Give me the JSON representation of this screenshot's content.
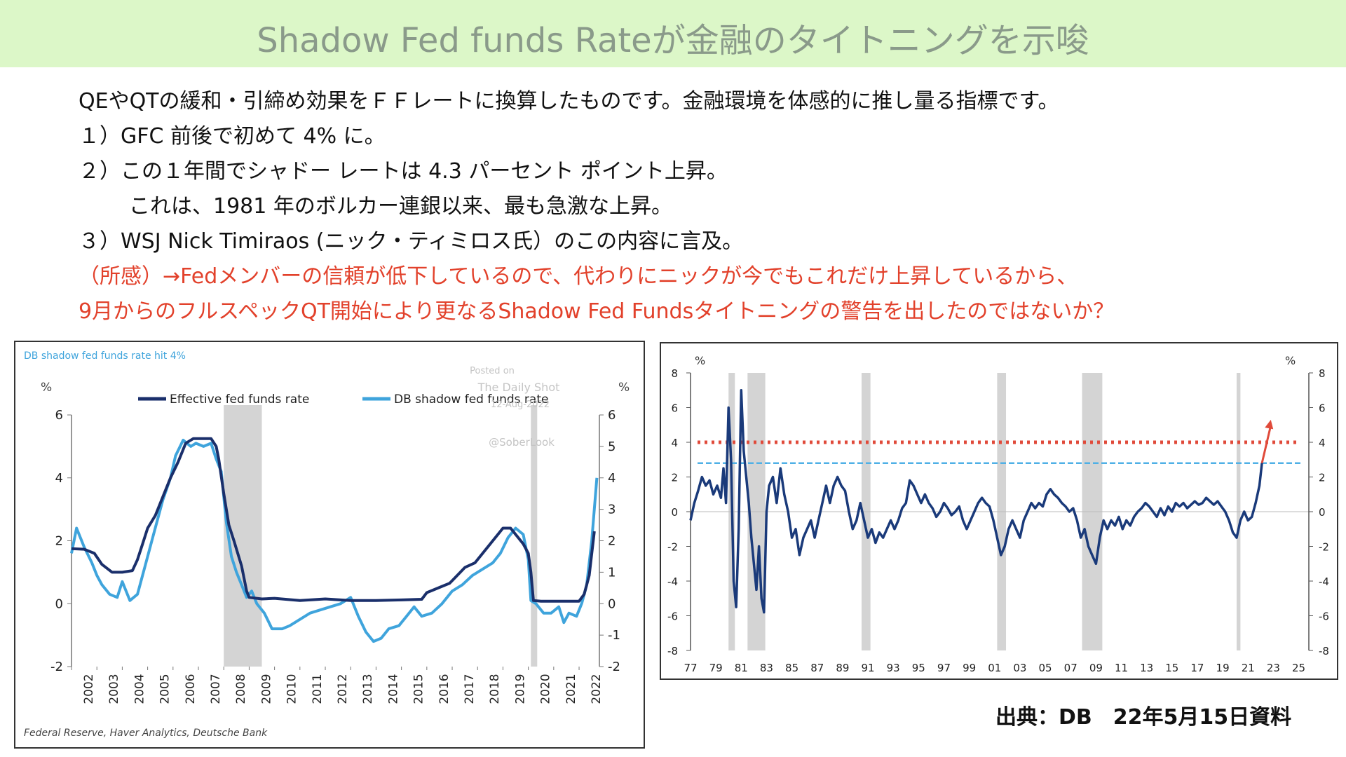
{
  "header": {
    "title": "Shadow Fed funds Rateが金融のタイトニングを示唆"
  },
  "body": {
    "lines": [
      "QEやQTの緩和・引締め効果をＦＦレートに換算したものです。金融環境を体感的に推し量る指標です。",
      "１）GFC 前後で初めて 4% に。",
      "２）この１年間でシャドー レートは 4.3 パーセント ポイント上昇。",
      "これは、1981 年のボルカー連銀以来、最も急激な上昇。",
      "３）WSJ Nick Timiraos (ニック・ティミロス氏）のこの内容に言及。"
    ],
    "comment_lines": [
      "（所感）→Fedメンバーの信頼が低下しているので、代わりにニックが今でもこれだけ上昇しているから、",
      "9月からのフルスペックQT開始により更なるShadow Fed Fundsタイトニングの警告を出したのではないか？"
    ]
  },
  "source_note": "出典：DB　22年5月15日資料",
  "chart_data": [
    {
      "type": "line",
      "title": "DB shadow fed funds rate hit 4%",
      "ylabel_left": "%",
      "ylabel_right": "%",
      "watermark": [
        "Posted on",
        "The Daily Shot",
        "12-Aug-2022",
        "@SoberLook"
      ],
      "footnote": "Federal Reserve, Haver Analytics, Deutsche Bank",
      "x_ticks": [
        "2002",
        "2003",
        "2004",
        "2005",
        "2006",
        "2007",
        "2008",
        "2009",
        "2010",
        "2011",
        "2012",
        "2013",
        "2014",
        "2015",
        "2016",
        "2017",
        "2018",
        "2019",
        "2020",
        "2021",
        "2022"
      ],
      "xlim": [
        2002,
        2022.8
      ],
      "ylim_left": [
        -2,
        6
      ],
      "yticks_left": [
        "6",
        "4",
        "2",
        "0",
        "-2"
      ],
      "ylim_right": [
        -2,
        6
      ],
      "yticks_right": [
        "6",
        "5",
        "4",
        "3",
        "2",
        "1",
        "0",
        "-1",
        "-2"
      ],
      "recessions": [
        [
          2008.0,
          2009.5
        ],
        [
          2020.1,
          2020.35
        ]
      ],
      "legend_position": "top",
      "colors": {
        "effective": "#1a2f6b",
        "shadow": "#3fa4dc",
        "recession": "#d4d4d4"
      },
      "series": [
        {
          "name": "Effective fed funds rate",
          "x": [
            2002.0,
            2002.5,
            2002.9,
            2003.2,
            2003.6,
            2004.0,
            2004.4,
            2004.6,
            2004.8,
            2005.0,
            2005.3,
            2005.6,
            2005.9,
            2006.2,
            2006.5,
            2006.8,
            2007.0,
            2007.5,
            2007.7,
            2007.8,
            2008.0,
            2008.2,
            2008.4,
            2008.7,
            2008.9,
            2009.0,
            2009.5,
            2010,
            2011,
            2012,
            2013,
            2014,
            2015.0,
            2015.8,
            2016.0,
            2016.9,
            2017.2,
            2017.5,
            2017.9,
            2018.2,
            2018.5,
            2018.8,
            2019.0,
            2019.3,
            2019.6,
            2019.8,
            2020.0,
            2020.1,
            2020.2,
            2020.5,
            2021,
            2021.5,
            2022.0,
            2022.2,
            2022.4,
            2022.6
          ],
          "y": [
            1.75,
            1.73,
            1.6,
            1.25,
            1.0,
            1.0,
            1.05,
            1.4,
            1.9,
            2.4,
            2.8,
            3.4,
            4.0,
            4.5,
            5.1,
            5.25,
            5.25,
            5.25,
            5.0,
            4.6,
            3.5,
            2.5,
            2.0,
            1.2,
            0.4,
            0.2,
            0.15,
            0.17,
            0.1,
            0.15,
            0.1,
            0.1,
            0.12,
            0.14,
            0.35,
            0.65,
            0.9,
            1.15,
            1.3,
            1.6,
            1.9,
            2.2,
            2.4,
            2.4,
            2.1,
            1.9,
            1.6,
            1.0,
            0.1,
            0.08,
            0.08,
            0.08,
            0.08,
            0.3,
            0.9,
            2.3
          ]
        },
        {
          "name": "DB shadow fed funds rate",
          "x": [
            2002.0,
            2002.2,
            2002.5,
            2002.8,
            2003.0,
            2003.2,
            2003.5,
            2003.8,
            2004.0,
            2004.3,
            2004.6,
            2004.9,
            2005.2,
            2005.6,
            2005.9,
            2006.1,
            2006.4,
            2006.7,
            2006.9,
            2007.2,
            2007.5,
            2007.7,
            2007.9,
            2008.1,
            2008.3,
            2008.5,
            2008.7,
            2008.9,
            2009.1,
            2009.3,
            2009.6,
            2009.9,
            2010.3,
            2010.6,
            2011.0,
            2011.4,
            2011.8,
            2012.2,
            2012.6,
            2013.0,
            2013.3,
            2013.6,
            2013.9,
            2014.2,
            2014.5,
            2014.9,
            2015.2,
            2015.5,
            2015.8,
            2016.2,
            2016.6,
            2017.0,
            2017.4,
            2017.8,
            2018.2,
            2018.6,
            2018.9,
            2019.2,
            2019.5,
            2019.8,
            2020.0,
            2020.1,
            2020.3,
            2020.6,
            2020.9,
            2021.2,
            2021.4,
            2021.6,
            2021.9,
            2022.1,
            2022.3,
            2022.5,
            2022.7
          ],
          "y": [
            1.6,
            2.4,
            1.8,
            1.3,
            0.9,
            0.6,
            0.3,
            0.2,
            0.7,
            0.1,
            0.3,
            1.2,
            2.1,
            3.3,
            4.0,
            4.7,
            5.2,
            5.0,
            5.1,
            5.0,
            5.1,
            4.6,
            4.2,
            2.6,
            1.5,
            1.0,
            0.6,
            0.2,
            0.4,
            0.0,
            -0.3,
            -0.8,
            -0.8,
            -0.7,
            -0.5,
            -0.3,
            -0.2,
            -0.1,
            0.0,
            0.2,
            -0.4,
            -0.9,
            -1.2,
            -1.1,
            -0.8,
            -0.7,
            -0.4,
            -0.1,
            -0.4,
            -0.3,
            0.0,
            0.4,
            0.6,
            0.9,
            1.1,
            1.3,
            1.6,
            2.1,
            2.4,
            2.2,
            1.4,
            0.1,
            0.0,
            -0.3,
            -0.3,
            -0.1,
            -0.6,
            -0.3,
            -0.4,
            0.0,
            0.6,
            2.0,
            4.0
          ]
        }
      ]
    },
    {
      "type": "line",
      "ylabel_left": "%",
      "ylabel_right": "%",
      "x_ticks": [
        "77",
        "79",
        "81",
        "83",
        "85",
        "87",
        "89",
        "91",
        "93",
        "95",
        "97",
        "99",
        "01",
        "03",
        "05",
        "07",
        "09",
        "11",
        "13",
        "15",
        "17",
        "19",
        "21",
        "23",
        "25"
      ],
      "xlim": [
        1977,
        2025.8
      ],
      "ylim": [
        -8,
        8
      ],
      "yticks": [
        "8",
        "6",
        "4",
        "2",
        "0",
        "-2",
        "-4",
        "-6",
        "-8"
      ],
      "reference_lines": [
        {
          "value": 4.0,
          "style": "dotted",
          "color": "#e04a3a"
        },
        {
          "value": 2.8,
          "style": "dashed",
          "color": "#4fb0e6"
        }
      ],
      "recessions": [
        [
          1980.0,
          1980.5
        ],
        [
          1981.5,
          1982.9
        ],
        [
          1990.5,
          1991.2
        ],
        [
          2001.2,
          2001.9
        ],
        [
          2007.9,
          2009.5
        ],
        [
          2020.1,
          2020.4
        ]
      ],
      "colors": {
        "line": "#1a3a7a",
        "arrow": "#e04a3a",
        "recession": "#d4d4d4",
        "zero_line": "#bbbbbb"
      },
      "arrow": {
        "from": [
          2022.1,
          2.8
        ],
        "to": [
          2022.8,
          5.3
        ]
      },
      "series": [
        {
          "x": [
            1977.0,
            1977.3,
            1977.6,
            1977.9,
            1978.2,
            1978.5,
            1978.8,
            1979.1,
            1979.4,
            1979.6,
            1979.8,
            1980.0,
            1980.2,
            1980.4,
            1980.6,
            1980.8,
            1981.0,
            1981.2,
            1981.4,
            1981.6,
            1981.8,
            1982.0,
            1982.2,
            1982.4,
            1982.6,
            1982.8,
            1983.0,
            1983.2,
            1983.5,
            1983.8,
            1984.1,
            1984.4,
            1984.7,
            1985.0,
            1985.3,
            1985.6,
            1985.9,
            1986.2,
            1986.5,
            1986.8,
            1987.1,
            1987.4,
            1987.7,
            1988.0,
            1988.3,
            1988.6,
            1988.9,
            1989.2,
            1989.5,
            1989.8,
            1990.1,
            1990.4,
            1990.7,
            1991.0,
            1991.3,
            1991.6,
            1991.9,
            1992.2,
            1992.5,
            1992.8,
            1993.1,
            1993.4,
            1993.7,
            1994.0,
            1994.3,
            1994.6,
            1994.9,
            1995.2,
            1995.5,
            1995.8,
            1996.1,
            1996.4,
            1996.7,
            1997.0,
            1997.3,
            1997.6,
            1997.9,
            1998.2,
            1998.5,
            1998.8,
            1999.1,
            1999.4,
            1999.7,
            2000.0,
            2000.3,
            2000.6,
            2000.9,
            2001.2,
            2001.5,
            2001.8,
            2002.1,
            2002.4,
            2002.7,
            2003.0,
            2003.3,
            2003.6,
            2003.9,
            2004.2,
            2004.5,
            2004.8,
            2005.1,
            2005.4,
            2005.7,
            2006.0,
            2006.3,
            2006.6,
            2006.9,
            2007.2,
            2007.5,
            2007.8,
            2008.1,
            2008.4,
            2008.7,
            2009.0,
            2009.3,
            2009.6,
            2009.9,
            2010.2,
            2010.5,
            2010.8,
            2011.1,
            2011.4,
            2011.7,
            2012.0,
            2012.3,
            2012.6,
            2012.9,
            2013.2,
            2013.5,
            2013.8,
            2014.1,
            2014.4,
            2014.7,
            2015.0,
            2015.3,
            2015.6,
            2015.9,
            2016.2,
            2016.5,
            2016.8,
            2017.1,
            2017.4,
            2017.7,
            2018.0,
            2018.3,
            2018.6,
            2018.9,
            2019.2,
            2019.5,
            2019.8,
            2020.1,
            2020.4,
            2020.7,
            2021.0,
            2021.3,
            2021.6,
            2021.9,
            2022.1
          ],
          "y": [
            -0.5,
            0.5,
            1.2,
            2.0,
            1.5,
            1.8,
            1.0,
            1.5,
            0.8,
            2.5,
            0.5,
            6.0,
            3.0,
            -4.0,
            -5.5,
            -1.0,
            7.0,
            3.5,
            2.0,
            0.5,
            -1.5,
            -3.0,
            -4.5,
            -2.0,
            -5.0,
            -5.8,
            0.0,
            1.5,
            2.0,
            0.5,
            2.5,
            1.0,
            0.0,
            -1.5,
            -1.0,
            -2.5,
            -1.5,
            -1.0,
            -0.5,
            -1.5,
            -0.5,
            0.5,
            1.5,
            0.5,
            1.5,
            2.0,
            1.5,
            1.2,
            0.0,
            -1.0,
            -0.5,
            0.5,
            -0.5,
            -1.5,
            -1.0,
            -1.8,
            -1.2,
            -1.5,
            -1.0,
            -0.5,
            -1.0,
            -0.5,
            0.2,
            0.5,
            1.8,
            1.5,
            1.0,
            0.5,
            1.0,
            0.5,
            0.2,
            -0.3,
            0.0,
            0.5,
            0.2,
            -0.2,
            0.0,
            0.3,
            -0.5,
            -1.0,
            -0.5,
            0.0,
            0.5,
            0.8,
            0.5,
            0.3,
            -0.5,
            -1.5,
            -2.5,
            -2.0,
            -1.0,
            -0.5,
            -1.0,
            -1.5,
            -0.5,
            0.0,
            0.5,
            0.2,
            0.5,
            0.3,
            1.0,
            1.3,
            1.0,
            0.8,
            0.5,
            0.3,
            0.0,
            0.2,
            -0.5,
            -1.5,
            -1.0,
            -2.0,
            -2.5,
            -3.0,
            -1.5,
            -0.5,
            -1.0,
            -0.5,
            -0.8,
            -0.3,
            -1.0,
            -0.5,
            -0.8,
            -0.3,
            0.0,
            0.2,
            0.5,
            0.3,
            0.0,
            -0.3,
            0.2,
            -0.2,
            0.3,
            0.0,
            0.5,
            0.3,
            0.5,
            0.2,
            0.4,
            0.6,
            0.4,
            0.5,
            0.8,
            0.6,
            0.4,
            0.6,
            0.3,
            0.0,
            -0.5,
            -1.2,
            -1.5,
            -0.5,
            0.0,
            -0.5,
            -0.3,
            0.5,
            1.5,
            2.8
          ]
        }
      ]
    }
  ]
}
